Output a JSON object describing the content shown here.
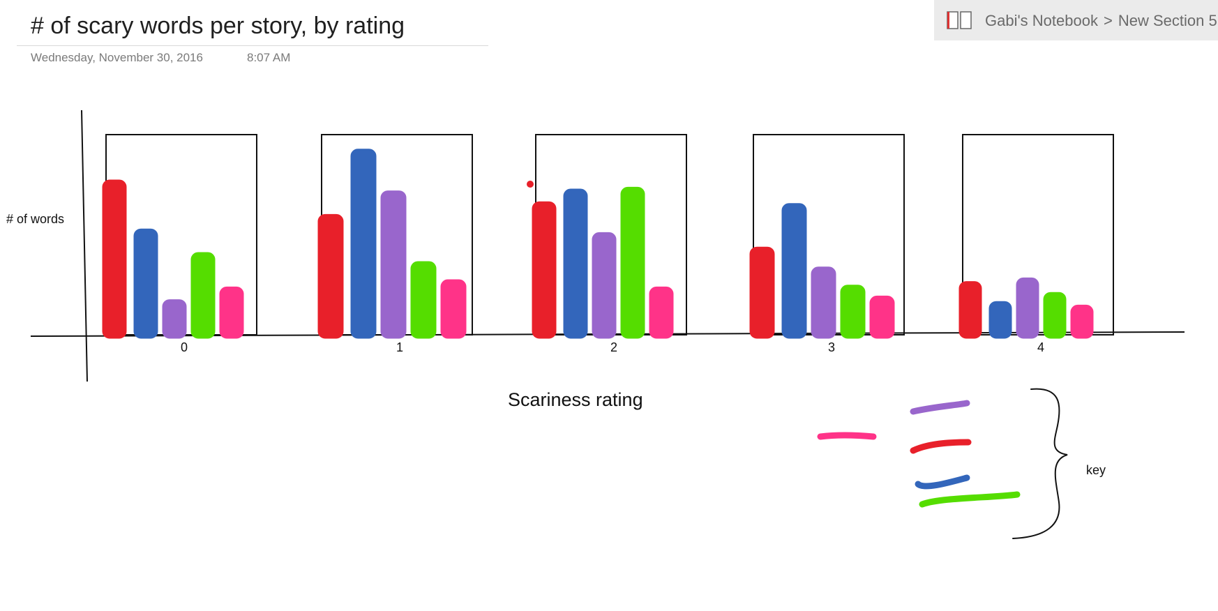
{
  "page": {
    "title": "# of scary words per story, by rating",
    "date": "Wednesday, November 30, 2016",
    "time": "8:07 AM"
  },
  "breadcrumb": {
    "notebook": "Gabi's Notebook",
    "separator": ">",
    "section": "New Section 5",
    "icon": "notebook-icon"
  },
  "drawing": {
    "ylabel": "# of words",
    "xlabel": "Scariness rating",
    "key_label": "key",
    "colors": {
      "red": "#e8202a",
      "blue": "#3366bb",
      "purple": "#9966cc",
      "green": "#55dd00",
      "pink": "#ff3388"
    }
  },
  "chart_data": {
    "type": "bar",
    "categories": [
      "0",
      "1",
      "2",
      "3",
      "4"
    ],
    "series": [
      {
        "color": "#e8202a",
        "values": [
          85,
          66,
          73,
          48,
          29
        ]
      },
      {
        "color": "#3366bb",
        "values": [
          58,
          102,
          80,
          72,
          18
        ]
      },
      {
        "color": "#9966cc",
        "values": [
          19,
          79,
          56,
          37,
          31
        ]
      },
      {
        "color": "#55dd00",
        "values": [
          45,
          40,
          81,
          27,
          23
        ]
      },
      {
        "color": "#ff3388",
        "values": [
          26,
          30,
          26,
          21,
          16
        ]
      }
    ],
    "xlabel": "Scariness rating",
    "ylabel": "# of words",
    "ylim": [
      0,
      110
    ]
  }
}
